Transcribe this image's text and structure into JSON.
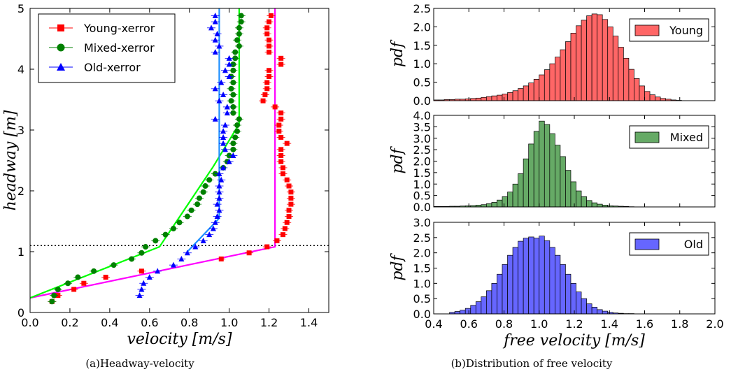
{
  "captions": {
    "a": "(a)Headway-velocity",
    "b": "(b)Distribution of free velocity"
  },
  "chart_data": [
    {
      "type": "scatter",
      "xlabel": "velocity [m/s]",
      "ylabel": "headway [m]",
      "xlim": [
        0.0,
        1.5
      ],
      "ylim": [
        0,
        5
      ],
      "xticks": [
        "0.0",
        "0.2",
        "0.4",
        "0.6",
        "0.8",
        "1.0",
        "1.2",
        "1.4"
      ],
      "yticks": [
        "0",
        "1",
        "2",
        "3",
        "4",
        "5"
      ],
      "legend_position": "top-left",
      "reference_line": {
        "y": 1.1,
        "style": "dotted"
      },
      "series": [
        {
          "name": "Young-xerror",
          "color": "#ff0000",
          "marker": "square",
          "points": [
            [
              0.11,
              0.18
            ],
            [
              0.14,
              0.28
            ],
            [
              0.22,
              0.38
            ],
            [
              0.27,
              0.48
            ],
            [
              0.38,
              0.58
            ],
            [
              0.56,
              0.68
            ],
            [
              0.96,
              0.88
            ],
            [
              1.1,
              0.98
            ],
            [
              1.19,
              1.08
            ],
            [
              1.24,
              1.18
            ],
            [
              1.27,
              1.28
            ],
            [
              1.28,
              1.38
            ],
            [
              1.29,
              1.48
            ],
            [
              1.3,
              1.58
            ],
            [
              1.3,
              1.68
            ],
            [
              1.31,
              1.78
            ],
            [
              1.31,
              1.88
            ],
            [
              1.31,
              1.98
            ],
            [
              1.3,
              2.08
            ],
            [
              1.29,
              2.18
            ],
            [
              1.27,
              2.28
            ],
            [
              1.27,
              2.38
            ],
            [
              1.26,
              2.48
            ],
            [
              1.26,
              2.58
            ],
            [
              1.26,
              2.68
            ],
            [
              1.29,
              2.78
            ],
            [
              1.26,
              2.88
            ],
            [
              1.25,
              2.98
            ],
            [
              1.25,
              3.08
            ],
            [
              1.26,
              3.18
            ],
            [
              1.26,
              3.28
            ],
            [
              1.23,
              3.38
            ],
            [
              1.17,
              3.48
            ],
            [
              1.18,
              3.58
            ],
            [
              1.19,
              3.68
            ],
            [
              1.19,
              3.78
            ],
            [
              1.2,
              3.88
            ],
            [
              1.2,
              3.98
            ],
            [
              1.26,
              4.08
            ],
            [
              1.26,
              4.18
            ],
            [
              1.2,
              4.28
            ],
            [
              1.2,
              4.38
            ],
            [
              1.2,
              4.48
            ],
            [
              1.19,
              4.58
            ],
            [
              1.19,
              4.68
            ],
            [
              1.2,
              4.78
            ],
            [
              1.21,
              4.88
            ]
          ]
        },
        {
          "name": "Mixed-xerror",
          "color": "#008000",
          "marker": "circle",
          "points": [
            [
              0.11,
              0.18
            ],
            [
              0.12,
              0.28
            ],
            [
              0.14,
              0.38
            ],
            [
              0.19,
              0.48
            ],
            [
              0.24,
              0.58
            ],
            [
              0.32,
              0.68
            ],
            [
              0.42,
              0.78
            ],
            [
              0.51,
              0.88
            ],
            [
              0.56,
              0.98
            ],
            [
              0.58,
              1.08
            ],
            [
              0.63,
              1.18
            ],
            [
              0.68,
              1.28
            ],
            [
              0.72,
              1.38
            ],
            [
              0.75,
              1.48
            ],
            [
              0.79,
              1.58
            ],
            [
              0.81,
              1.68
            ],
            [
              0.84,
              1.78
            ],
            [
              0.85,
              1.88
            ],
            [
              0.87,
              1.98
            ],
            [
              0.88,
              2.08
            ],
            [
              0.9,
              2.18
            ],
            [
              0.93,
              2.28
            ],
            [
              0.97,
              2.38
            ],
            [
              0.99,
              2.48
            ],
            [
              1.0,
              2.58
            ],
            [
              1.02,
              2.68
            ],
            [
              1.02,
              2.78
            ],
            [
              1.03,
              2.88
            ],
            [
              1.04,
              2.98
            ],
            [
              1.04,
              3.08
            ],
            [
              1.05,
              3.18
            ],
            [
              1.02,
              3.28
            ],
            [
              1.02,
              3.38
            ],
            [
              1.01,
              3.48
            ],
            [
              1.02,
              3.58
            ],
            [
              1.01,
              3.68
            ],
            [
              1.02,
              3.78
            ],
            [
              1.01,
              3.88
            ],
            [
              1.02,
              3.98
            ],
            [
              1.02,
              4.08
            ],
            [
              1.03,
              4.18
            ],
            [
              1.03,
              4.28
            ],
            [
              1.05,
              4.38
            ],
            [
              1.04,
              4.48
            ],
            [
              1.05,
              4.58
            ],
            [
              1.05,
              4.68
            ],
            [
              1.06,
              4.78
            ],
            [
              1.06,
              4.88
            ]
          ]
        },
        {
          "name": "Old-xerror",
          "color": "#0000ff",
          "marker": "triangle",
          "points": [
            [
              0.55,
              0.28
            ],
            [
              0.56,
              0.38
            ],
            [
              0.57,
              0.48
            ],
            [
              0.6,
              0.58
            ],
            [
              0.64,
              0.68
            ],
            [
              0.72,
              0.78
            ],
            [
              0.76,
              0.88
            ],
            [
              0.79,
              0.98
            ],
            [
              0.83,
              1.08
            ],
            [
              0.87,
              1.18
            ],
            [
              0.9,
              1.28
            ],
            [
              0.92,
              1.38
            ],
            [
              0.93,
              1.48
            ],
            [
              0.94,
              1.58
            ],
            [
              0.95,
              1.68
            ],
            [
              0.94,
              1.78
            ],
            [
              0.95,
              1.88
            ],
            [
              0.95,
              1.98
            ],
            [
              0.95,
              2.08
            ],
            [
              0.96,
              2.18
            ],
            [
              0.95,
              2.28
            ],
            [
              0.97,
              2.38
            ],
            [
              1.0,
              2.48
            ],
            [
              1.02,
              2.58
            ],
            [
              0.98,
              2.68
            ],
            [
              0.97,
              2.78
            ],
            [
              0.97,
              2.88
            ],
            [
              0.97,
              2.98
            ],
            [
              0.98,
              3.08
            ],
            [
              0.93,
              3.18
            ],
            [
              0.99,
              3.28
            ],
            [
              0.99,
              3.38
            ],
            [
              0.95,
              3.48
            ],
            [
              0.97,
              3.58
            ],
            [
              0.93,
              3.68
            ],
            [
              0.96,
              3.78
            ],
            [
              1.0,
              3.88
            ],
            [
              0.98,
              3.98
            ],
            [
              1.0,
              4.08
            ],
            [
              1.0,
              4.18
            ],
            [
              0.93,
              4.28
            ],
            [
              0.95,
              4.38
            ],
            [
              0.93,
              4.48
            ],
            [
              0.94,
              4.58
            ],
            [
              0.91,
              4.68
            ],
            [
              0.93,
              4.78
            ],
            [
              0.93,
              4.88
            ]
          ]
        }
      ],
      "fit_lines": [
        {
          "color": "#ff00ff",
          "points": [
            [
              0.0,
              0.24
            ],
            [
              1.23,
              1.08
            ],
            [
              1.23,
              5.0
            ]
          ]
        },
        {
          "color": "#00ff00",
          "points": [
            [
              0.0,
              0.24
            ],
            [
              0.65,
              1.08
            ],
            [
              0.92,
              2.4
            ],
            [
              1.05,
              3.1
            ],
            [
              1.05,
              5.0
            ]
          ]
        },
        {
          "color": "#1e90ff",
          "points": [
            [
              0.79,
              1.0
            ],
            [
              0.95,
              1.55
            ],
            [
              0.95,
              5.0
            ]
          ]
        }
      ]
    },
    {
      "type": "bar",
      "name": "Young",
      "color": "#ff6666",
      "xlim": [
        0.4,
        2.0
      ],
      "ylim": [
        0,
        2.5
      ],
      "ylabel": "pdf",
      "yticks": [
        "0.0",
        "0.5",
        "1.0",
        "1.5",
        "2.0",
        "2.5"
      ],
      "bin_start": 0.4,
      "bin_width": 0.03,
      "values": [
        0.02,
        0.02,
        0.03,
        0.03,
        0.04,
        0.04,
        0.05,
        0.06,
        0.07,
        0.09,
        0.11,
        0.13,
        0.15,
        0.18,
        0.22,
        0.27,
        0.33,
        0.4,
        0.48,
        0.58,
        0.7,
        0.84,
        1.0,
        1.18,
        1.38,
        1.6,
        1.83,
        2.03,
        2.18,
        2.3,
        2.35,
        2.33,
        2.2,
        2.0,
        1.75,
        1.45,
        1.15,
        0.85,
        0.6,
        0.4,
        0.25,
        0.16,
        0.1,
        0.06,
        0.04,
        0.02,
        0.01
      ]
    },
    {
      "type": "bar",
      "name": "Mixed",
      "color": "#66aa66",
      "xlim": [
        0.4,
        2.0
      ],
      "ylim": [
        0,
        4.0
      ],
      "ylabel": "pdf",
      "yticks": [
        "0.0",
        "0.5",
        "1.0",
        "1.5",
        "2.0",
        "2.5",
        "3.0",
        "3.5",
        "4.0"
      ],
      "bin_start": 0.4,
      "bin_width": 0.03,
      "values": [
        0.02,
        0.02,
        0.02,
        0.03,
        0.03,
        0.04,
        0.05,
        0.06,
        0.08,
        0.1,
        0.14,
        0.2,
        0.3,
        0.45,
        0.65,
        1.0,
        1.45,
        2.1,
        2.75,
        3.3,
        3.75,
        3.6,
        3.2,
        2.7,
        2.2,
        1.6,
        1.1,
        0.7,
        0.45,
        0.28,
        0.18,
        0.12,
        0.08,
        0.05,
        0.04,
        0.03,
        0.02,
        0.01
      ]
    },
    {
      "type": "bar",
      "name": "Old",
      "color": "#6666ff",
      "xlim": [
        0.4,
        2.0
      ],
      "ylim": [
        0,
        3.0
      ],
      "xlabel": "free velocity [m/s]",
      "ylabel": "pdf",
      "yticks": [
        "0.0",
        "0.5",
        "1.0",
        "1.5",
        "2.0",
        "2.5",
        "3.0"
      ],
      "xticks": [
        "0.4",
        "0.6",
        "0.8",
        "1.0",
        "1.2",
        "1.4",
        "1.6",
        "1.8",
        "2.0"
      ],
      "bin_start": 0.49,
      "bin_width": 0.03,
      "values": [
        0.05,
        0.08,
        0.12,
        0.18,
        0.28,
        0.4,
        0.56,
        0.76,
        1.0,
        1.3,
        1.62,
        1.92,
        2.18,
        2.38,
        2.48,
        2.52,
        2.48,
        2.55,
        2.4,
        2.18,
        1.92,
        1.62,
        1.3,
        1.0,
        0.72,
        0.5,
        0.33,
        0.22,
        0.14,
        0.09,
        0.05,
        0.03,
        0.02,
        0.01,
        0.01
      ]
    }
  ]
}
